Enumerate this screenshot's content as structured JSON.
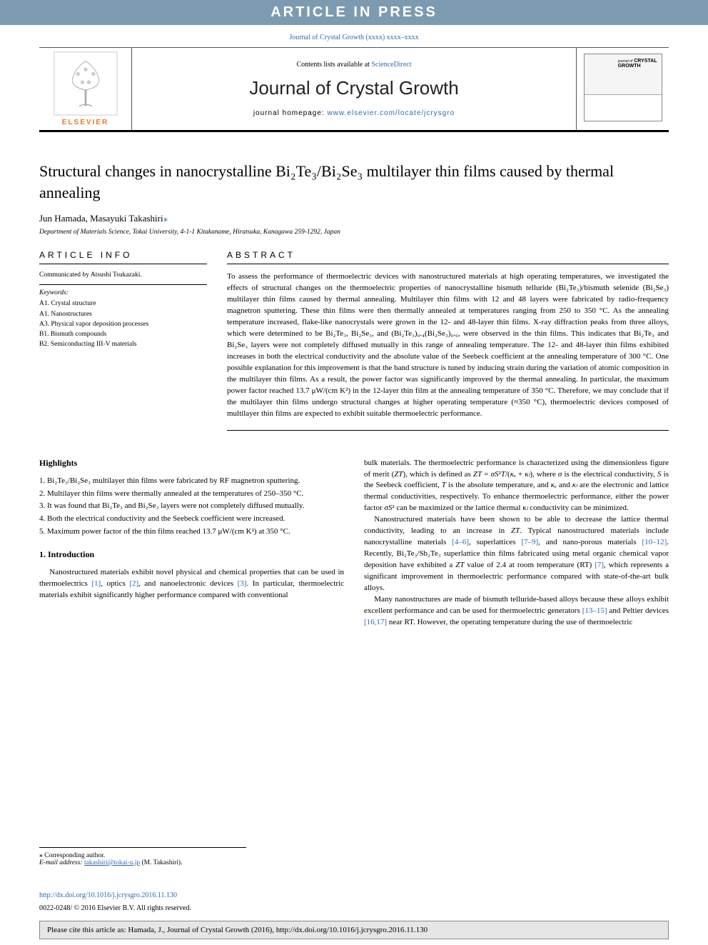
{
  "banner": {
    "text": "ARTICLE IN PRESS"
  },
  "journal_ref": "Journal of Crystal Growth  (xxxx) xxxx–xxxx",
  "masthead": {
    "contents_prefix": "Contents lists available at ",
    "contents_link": "ScienceDirect",
    "journal_title": "Journal of Crystal Growth",
    "homepage_prefix": "journal homepage: ",
    "homepage_link": "www.elsevier.com/locate/jcrysgro",
    "publisher": "ELSEVIER",
    "cover_brand_line1": "CRYSTAL",
    "cover_brand_line2": "GROWTH",
    "cover_brand_prefix": "journal of"
  },
  "article": {
    "title_html": "Structural changes in nanocrystalline Bi₂Te₃/Bi₂Se₃ multilayer thin films caused by thermal annealing",
    "authors": "Jun Hamada, Masayuki Takashiri",
    "corresponding_mark": "⁎",
    "affiliation": "Department of Materials Science, Tokai University, 4-1-1 Kitakaname, Hiratsuka, Kanagawa 259-1292, Japan"
  },
  "headings": {
    "article_info": "ARTICLE INFO",
    "abstract": "ABSTRACT",
    "highlights": "Highlights",
    "introduction": "1.  Introduction"
  },
  "article_info": {
    "communicated": "Communicated by Atsushi Tsukazaki.",
    "keywords_label": "Keywords:",
    "keywords": [
      "A1. Crystal structure",
      "A1. Nanostructures",
      "A3. Physical vapor deposition processes",
      "B1. Bismuth compounds",
      "B2. Semiconducting III-V materials"
    ]
  },
  "abstract": "To assess the performance of thermoelectric devices with nanostructured materials at high operating temperatures, we investigated the effects of structural changes on the thermoelectric properties of nanocrystalline bismuth telluride (Bi₂Te₃)/bismuth selenide (Bi₂Se₃) multilayer thin films caused by thermal annealing. Multilayer thin films with 12 and 48 layers were fabricated by radio-frequency magnetron sputtering. These thin films were then thermally annealed at temperatures ranging from 250 to 350 °C. As the annealing temperature increased, flake-like nanocrystals were grown in the 12- and 48-layer thin films. X-ray diffraction peaks from three alloys, which were determined to be Bi₂Te₃, Bi₂Se₃, and (Bi₂Te₃)₀.₄(Bi₂Se₃)₀.₆, were observed in the thin films. This indicates that Bi₂Te₃ and Bi₂Se₃ layers were not completely diffused mutually in this range of annealing temperature. The 12- and 48-layer thin films exhibited increases in both the electrical conductivity and the absolute value of the Seebeck coefficient at the annealing temperature of 300 °C. One possible explanation for this improvement is that the band structure is tuned by inducing strain during the variation of atomic composition in the multilayer thin films. As a result, the power factor was significantly improved by the thermal annealing. In particular, the maximum power factor reached 13.7 μW/(cm K²) in the 12-layer thin film at the annealing temperature of 350 °C. Therefore, we may conclude that if the multilayer thin films undergo structural changes at higher operating temperature (≈350 °C), thermoelectric devices composed of multilayer thin films are expected to exhibit suitable thermoelectric performance.",
  "highlights": [
    "Bi₂Te₃/Bi₂Se₃ multilayer thin films were fabricated by RF magnetron sputtering.",
    "Multilayer thin films were thermally annealed at the temperatures of 250–350 °C.",
    "It was found that Bi₂Te₃ and Bi₂Se₃ layers were not completely diffused mutually.",
    "Both the electrical conductivity and the Seebeck coefficient were increased.",
    "Maximum power factor of the thin films reached 13.7 μW/(cm K²) at 350 °C."
  ],
  "intro_left": "Nanostructured materials exhibit novel physical and chemical properties that can be used in thermoelectrics [1], optics [2], and nanoelectronic devices [3]. In particular, thermoelectric materials exhibit significantly higher performance compared with conventional",
  "intro_right_p1": "bulk materials. The thermoelectric performance is characterized using the dimensionless figure of merit (ZT), which is defined as ZT = σS²T/(κₑ + κₗ), where σ is the electrical conductivity, S is the Seebeck coefficient, T is the absolute temperature, and κₑ and κₗ are the electronic and lattice thermal conductivities, respectively. To enhance thermoelectric performance, either the power factor σS² can be maximized or the lattice thermal κₗ conductivity can be minimized.",
  "intro_right_p2": "Nanostructured materials have been shown to be able to decrease the lattice thermal conductivity, leading to an increase in ZT. Typical nanostructured materials include nanocrystalline materials [4–6], superlattices [7–9], and nano-porous materials [10–12]. Recently, Bi₂Te₃/Sb₂Te₃ superlattice thin films fabricated using metal organic chemical vapor deposition have exhibited a ZT value of 2.4 at room temperature (RT) [7], which represents a significant improvement in thermoelectric performance compared with state-of-the-art bulk alloys.",
  "intro_right_p3": "Many nanostructures are made of bismuth telluride-based alloys because these alloys exhibit excellent performance and can be used for thermoelectric generators [13–15] and Peltier devices [16,17] near RT. However, the operating temperature during the use of thermoelectric",
  "footnotes": {
    "corresponding": "⁎ Corresponding author.",
    "email_label": "E-mail address: ",
    "email": "takashiri@tokai-u.jp",
    "email_suffix": " (M. Takashiri)."
  },
  "doi": "http://dx.doi.org/10.1016/j.jcrysgro.2016.11.130",
  "copyright": "0022-0248/ © 2016 Elsevier B.V. All rights reserved.",
  "citation": "Please cite this article as: Hamada, J., Journal of Crystal Growth (2016), http://dx.doi.org/10.1016/j.jcrysgro.2016.11.130",
  "colors": {
    "banner_bg": "#7d9bb0",
    "link": "#2a6baf",
    "elsevier": "#e8792b",
    "citebox_bg": "#e6e6e6"
  }
}
